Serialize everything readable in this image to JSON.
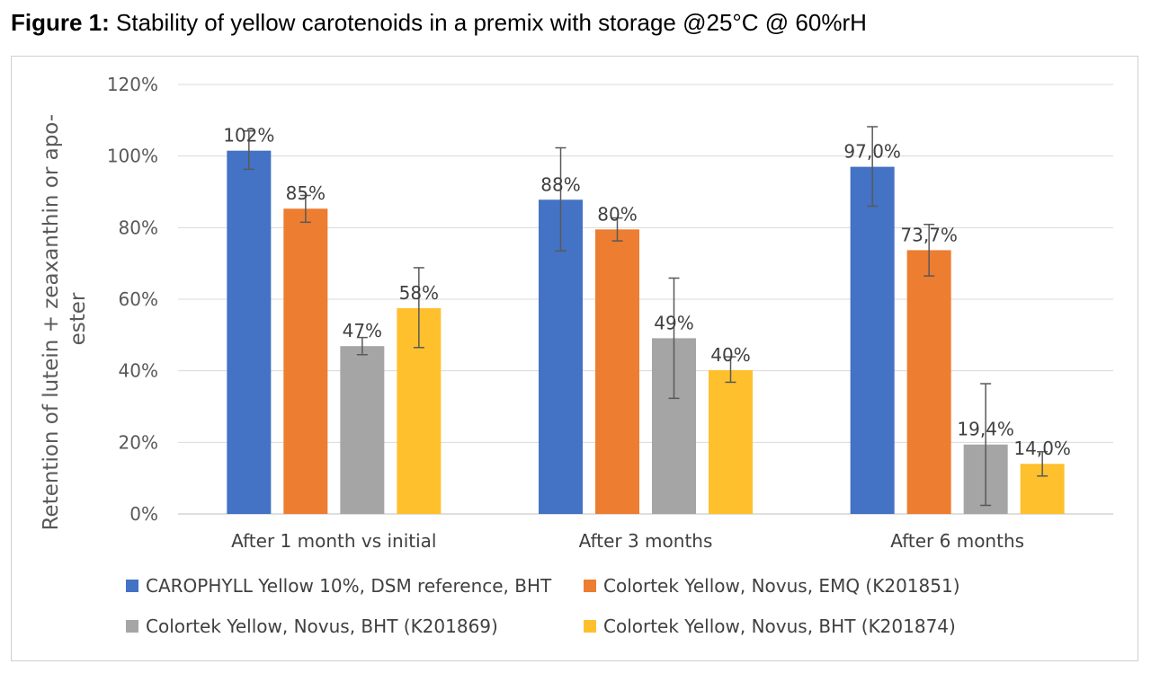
{
  "title": {
    "lead": "Figure 1:",
    "text": "Stability of yellow carotenoids in a premix with storage @25°C @ 60%rH"
  },
  "chart_data": {
    "type": "bar",
    "categories": [
      "After 1 month vs initial",
      "After 3 months",
      "After 6 months"
    ],
    "ylabel_lines": [
      "Retention of lutein  +  zeaxanthin or apo-",
      "ester"
    ],
    "ylim": [
      0,
      120
    ],
    "yticks": [
      0,
      20,
      40,
      60,
      80,
      100,
      120
    ],
    "ytick_labels": [
      "0%",
      "20%",
      "40%",
      "60%",
      "80%",
      "100%",
      "120%"
    ],
    "grid": true,
    "legend_position": "bottom",
    "series": [
      {
        "name": "CAROPHYLL Yellow 10%, DSM reference, BHT",
        "color": "#4472C4",
        "values": [
          101.5,
          87.8,
          97.0
        ],
        "labels": [
          "102%",
          "88%",
          "97,0%"
        ],
        "error_low": [
          96.3,
          73.5,
          86.0
        ],
        "error_high": [
          107.0,
          102.3,
          108.2
        ]
      },
      {
        "name": "Colortek Yellow, Novus, EMQ (K201851)",
        "color": "#ED7D31",
        "values": [
          85.3,
          79.5,
          73.7
        ],
        "labels": [
          "85%",
          "80%",
          "73,7%"
        ],
        "error_low": [
          81.5,
          76.3,
          66.5
        ],
        "error_high": [
          89.0,
          82.7,
          80.9
        ]
      },
      {
        "name": "Colortek Yellow, Novus, BHT (K201869)",
        "color": "#A5A5A5",
        "values": [
          46.9,
          49.1,
          19.4
        ],
        "labels": [
          "47%",
          "49%",
          "19,4%"
        ],
        "error_low": [
          44.5,
          32.3,
          2.4
        ],
        "error_high": [
          49.3,
          65.9,
          36.4
        ]
      },
      {
        "name": "Colortek Yellow, Novus, BHT (K201874)",
        "color": "#FFC02E",
        "values": [
          57.5,
          40.2,
          14.0
        ],
        "labels": [
          "58%",
          "40%",
          "14,0%"
        ],
        "error_low": [
          46.5,
          36.8,
          10.6
        ],
        "error_high": [
          68.8,
          43.9,
          17.4
        ]
      }
    ]
  }
}
